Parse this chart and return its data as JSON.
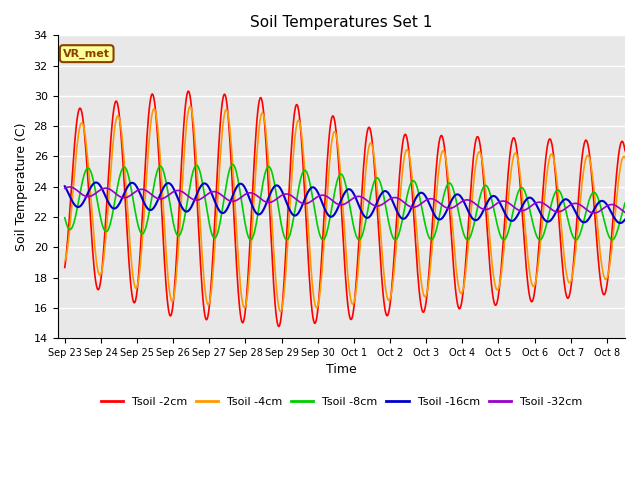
{
  "title": "Soil Temperatures Set 1",
  "xlabel": "Time",
  "ylabel": "Soil Temperature (C)",
  "ylim": [
    14,
    34
  ],
  "yticks": [
    14,
    16,
    18,
    20,
    22,
    24,
    26,
    28,
    30,
    32,
    34
  ],
  "background_color": "#e8e8e8",
  "legend_labels": [
    "Tsoil -2cm",
    "Tsoil -4cm",
    "Tsoil -8cm",
    "Tsoil -16cm",
    "Tsoil -32cm"
  ],
  "line_colors": [
    "#ff0000",
    "#ff9900",
    "#00cc00",
    "#0000cc",
    "#9900cc"
  ],
  "annotation_text": "VR_met",
  "tick_labels": [
    "Sep 23",
    "Sep 24",
    "Sep 25",
    "Sep 26",
    "Sep 27",
    "Sep 28",
    "Sep 29",
    "Sep 30",
    "Oct 1",
    "Oct 2",
    "Oct 3",
    "Oct 4",
    "Oct 5",
    "Oct 6",
    "Oct 7",
    "Oct 8"
  ],
  "n_days": 15.5,
  "n_points": 744
}
